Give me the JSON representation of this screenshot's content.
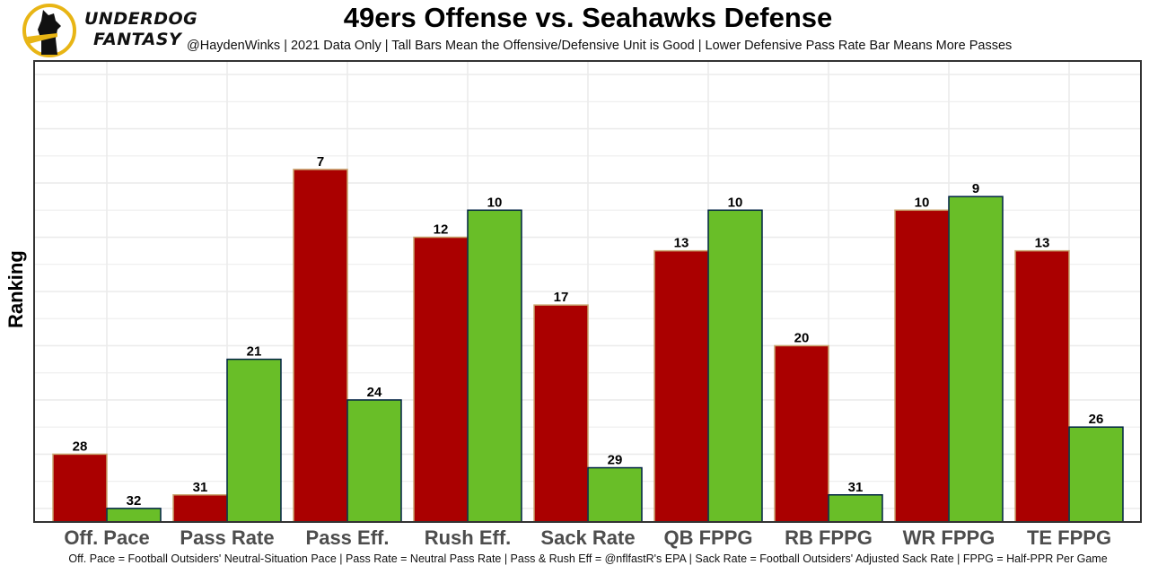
{
  "brand": {
    "line1": "UNDERDOG",
    "line2": "FANTASY",
    "colors": {
      "ring": "#e8b515",
      "dog": "#111111"
    }
  },
  "header": {
    "title": "49ers Offense vs. Seahawks Defense",
    "subtitle": "@HaydenWinks | 2021 Data Only | Tall Bars Mean the Offensive/Defensive Unit is Good | Lower Defensive Pass Rate Bar Means More Passes"
  },
  "footer": {
    "caption": "Off. Pace = Football Outsiders' Neutral-Situation Pace | Pass Rate = Neutral Pass Rate | Pass & Rush Eff = @nflfastR's EPA | Sack Rate = Football Outsiders' Adjusted Sack Rate | FPPG = Half-PPR Per Game"
  },
  "chart_data": {
    "type": "bar",
    "title": "49ers Offense vs. Seahawks Defense",
    "xlabel": "",
    "ylabel": "Ranking",
    "categories": [
      "Off. Pace",
      "Pass Rate",
      "Pass Eff.",
      "Rush Eff.",
      "Sack Rate",
      "QB FPPG",
      "RB FPPG",
      "WR FPPG",
      "TE FPPG"
    ],
    "series": [
      {
        "name": "49ers Offense",
        "color": "#aa0000",
        "border": "#c8a46e",
        "values": [
          28,
          31,
          7,
          12,
          17,
          13,
          20,
          10,
          13
        ]
      },
      {
        "name": "Seahawks Defense",
        "color": "#69be28",
        "border": "#002244",
        "values": [
          32,
          21,
          24,
          10,
          29,
          10,
          31,
          9,
          26
        ]
      }
    ],
    "bar_height_rule": "height = 33 - rank (rank 1 tallest)",
    "rank_max": 33,
    "ylim_height_units": [
      0,
      34
    ],
    "y_tick_labels_shown": false,
    "grid": true,
    "legend": "none",
    "colors": {
      "grid": "#ebebeb",
      "axis_text": "#4d4d4d",
      "panel_border": "#333333"
    }
  }
}
